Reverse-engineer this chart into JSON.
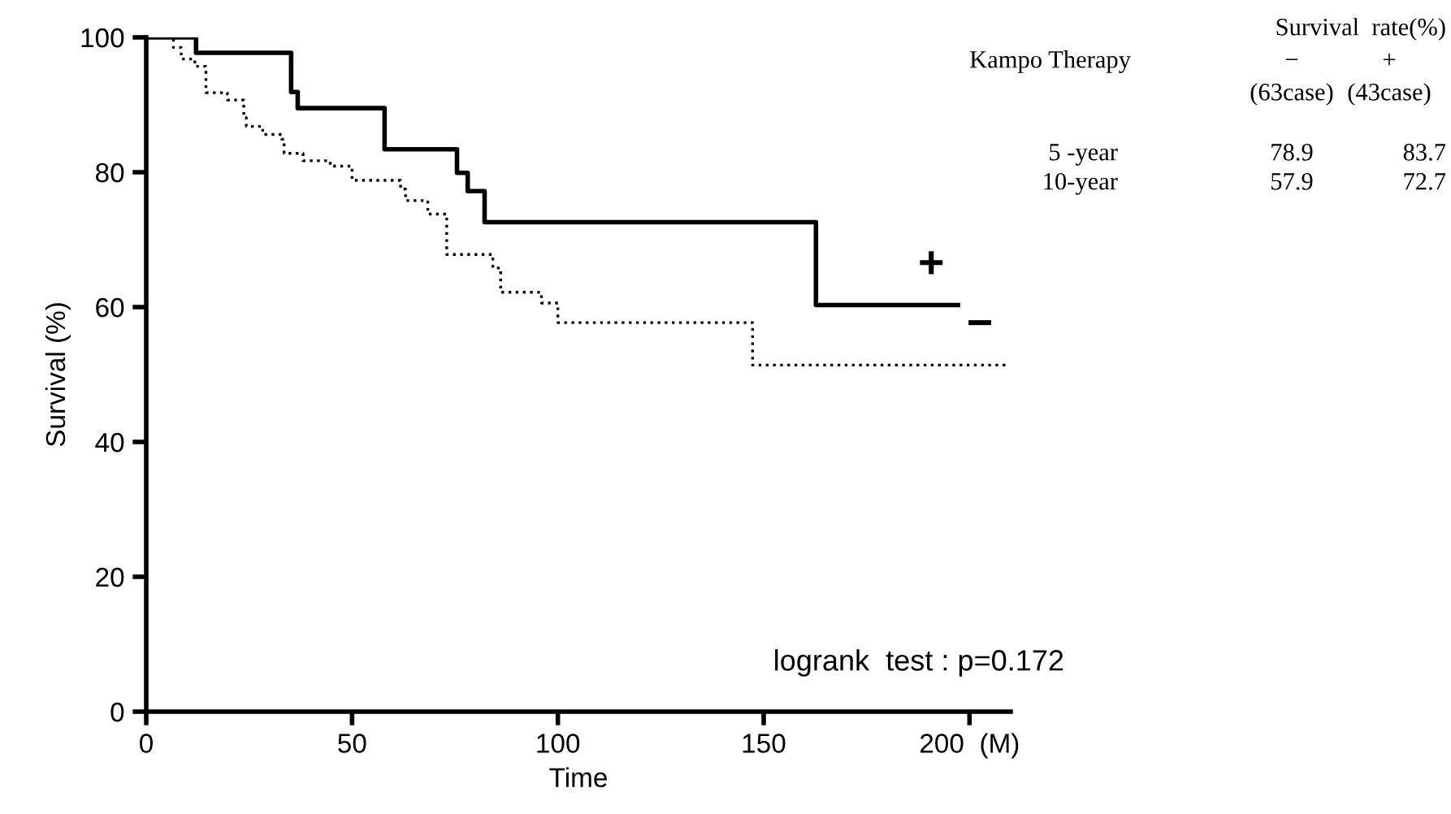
{
  "chart_data": {
    "type": "step",
    "xlabel": "Time",
    "ylabel": "Survival (%)",
    "xlim": [
      0,
      210
    ],
    "ylim": [
      0,
      100
    ],
    "xticks": [
      0,
      50,
      100,
      150,
      {
        "value": 200,
        "label": "200  (M)"
      }
    ],
    "yticks": [
      0,
      20,
      40,
      60,
      80,
      100
    ],
    "grid": false,
    "legend": false,
    "marker": "none",
    "series": [
      {
        "name": "+",
        "color": "#000000",
        "line_style": "solid",
        "x": [
          0,
          12.1,
          35.2,
          36.8,
          57.9,
          75.5,
          78.1,
          82.2,
          162.7,
          197.2
        ],
        "values": [
          100,
          97.7,
          91.9,
          89.5,
          83.4,
          79.9,
          77.2,
          72.6,
          60.3,
          60.3
        ]
      },
      {
        "name": "−",
        "color": "#000000",
        "line_style": "dotted",
        "x": [
          0,
          6.6,
          8.5,
          11.8,
          14.5,
          19.7,
          23.7,
          24.3,
          28.3,
          32.9,
          33.5,
          38.1,
          44.7,
          50,
          61.8,
          63,
          68.4,
          73,
          84.2,
          86.1,
          96,
          100,
          147.3,
          209
        ],
        "values": [
          100,
          98.5,
          96.8,
          95.7,
          91.8,
          90.7,
          88.1,
          86.8,
          85.6,
          84.9,
          82.8,
          81.7,
          80.9,
          78.8,
          77.5,
          75.8,
          73.8,
          67.8,
          65.8,
          62.2,
          60.6,
          57.7,
          51.4,
          51.4
        ]
      }
    ],
    "annotations": [
      "Survival  rate(%)",
      "Kampo Therapy",
      "−",
      "+",
      "(63case)",
      "(43case)",
      "5 -year",
      "78.9",
      "83.7",
      "10-year",
      "57.9",
      "72.7",
      "logrank  test : p=0.172"
    ]
  }
}
